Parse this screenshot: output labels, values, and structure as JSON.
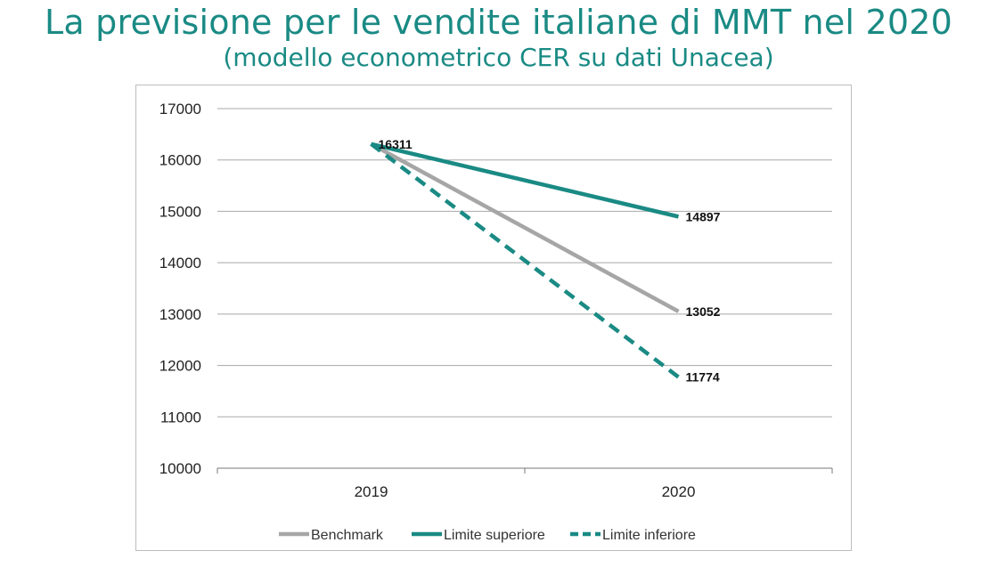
{
  "slide": {
    "title": "La previsione per le vendite italiane di MMT nel 2020",
    "subtitle": "(modello econometrico CER su dati Unacea)"
  },
  "chart_data": {
    "type": "line",
    "categories": [
      "2019",
      "2020"
    ],
    "ylim": [
      10000,
      17000
    ],
    "yticks": [
      10000,
      11000,
      12000,
      13000,
      14000,
      15000,
      16000,
      17000
    ],
    "grid": true,
    "legend_position": "bottom",
    "series": [
      {
        "name": "Benchmark",
        "values": [
          16311,
          13052
        ],
        "color": "#a6a6a6",
        "dash": "solid",
        "labels": [
          "",
          "13052"
        ]
      },
      {
        "name": "Limite superiore",
        "values": [
          16311,
          14897
        ],
        "color": "#1a8a84",
        "dash": "solid",
        "labels": [
          "16311",
          "14897"
        ]
      },
      {
        "name": "Limite inferiore",
        "values": [
          16311,
          11774
        ],
        "color": "#1a8a84",
        "dash": "dashed",
        "labels": [
          "",
          "11774"
        ]
      }
    ]
  }
}
